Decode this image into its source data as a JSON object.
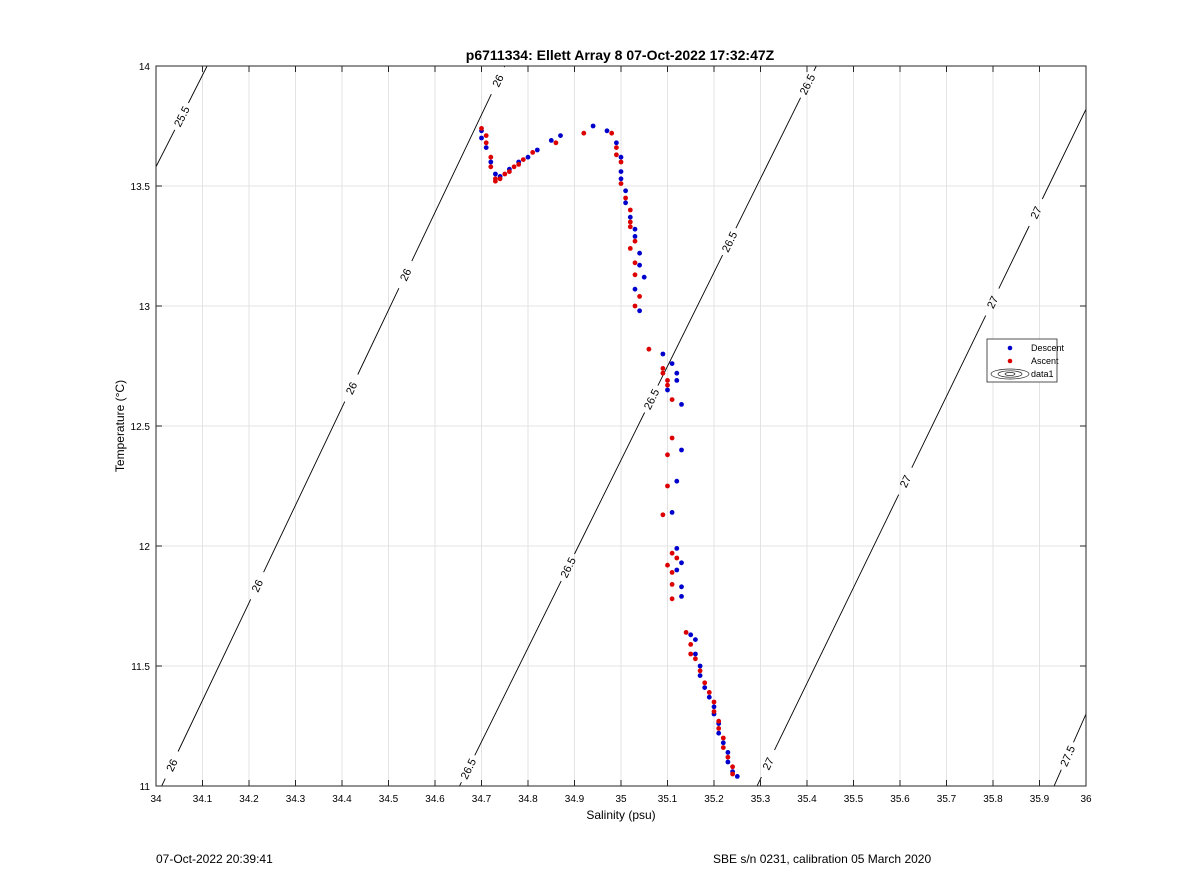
{
  "chart_data": {
    "type": "scatter",
    "title": "p6711334: Ellett Array 8 07-Oct-2022 17:32:47Z",
    "xlabel": "Salinity (psu)",
    "ylabel": "Temperature (°C)",
    "xlim": [
      34,
      36
    ],
    "ylim": [
      11,
      14
    ],
    "xticks": [
      34,
      34.1,
      34.2,
      34.3,
      34.4,
      34.5,
      34.6,
      34.7,
      34.8,
      34.9,
      35,
      35.1,
      35.2,
      35.3,
      35.4,
      35.5,
      35.6,
      35.7,
      35.8,
      35.9,
      36
    ],
    "xtick_labels": [
      "34",
      "34.1",
      "34.2",
      "34.3",
      "34.4",
      "34.5",
      "34.6",
      "34.7",
      "34.8",
      "34.9",
      "35",
      "35.1",
      "35.2",
      "35.3",
      "35.4",
      "35.5",
      "35.6",
      "35.7",
      "35.8",
      "35.9",
      "36"
    ],
    "yticks": [
      11,
      11.5,
      12,
      12.5,
      13,
      13.5,
      14
    ],
    "ytick_labels": [
      "11",
      "11.5",
      "12",
      "12.5",
      "13",
      "13.5",
      "14"
    ],
    "grid": true,
    "legend_position": "right",
    "series": [
      {
        "name": "Descent",
        "color": "#0000cc",
        "marker": "dot",
        "points": [
          [
            34.7,
            13.73
          ],
          [
            34.7,
            13.7
          ],
          [
            34.71,
            13.66
          ],
          [
            34.72,
            13.6
          ],
          [
            34.73,
            13.55
          ],
          [
            34.74,
            13.54
          ],
          [
            34.76,
            13.57
          ],
          [
            34.78,
            13.6
          ],
          [
            34.8,
            13.62
          ],
          [
            34.82,
            13.65
          ],
          [
            34.85,
            13.69
          ],
          [
            34.87,
            13.71
          ],
          [
            34.94,
            13.75
          ],
          [
            34.97,
            13.73
          ],
          [
            34.99,
            13.68
          ],
          [
            35.0,
            13.62
          ],
          [
            35.0,
            13.56
          ],
          [
            35.0,
            13.53
          ],
          [
            35.01,
            13.48
          ],
          [
            35.01,
            13.43
          ],
          [
            35.02,
            13.37
          ],
          [
            35.03,
            13.32
          ],
          [
            35.03,
            13.29
          ],
          [
            35.04,
            13.22
          ],
          [
            35.04,
            13.17
          ],
          [
            35.05,
            13.12
          ],
          [
            35.03,
            13.07
          ],
          [
            35.04,
            12.98
          ],
          [
            35.09,
            12.8
          ],
          [
            35.11,
            12.76
          ],
          [
            35.12,
            12.72
          ],
          [
            35.12,
            12.69
          ],
          [
            35.1,
            12.65
          ],
          [
            35.13,
            12.59
          ],
          [
            35.13,
            12.4
          ],
          [
            35.12,
            12.27
          ],
          [
            35.11,
            12.14
          ],
          [
            35.12,
            11.99
          ],
          [
            35.13,
            11.93
          ],
          [
            35.12,
            11.9
          ],
          [
            35.13,
            11.83
          ],
          [
            35.13,
            11.79
          ],
          [
            35.15,
            11.63
          ],
          [
            35.16,
            11.61
          ],
          [
            35.16,
            11.55
          ],
          [
            35.17,
            11.5
          ],
          [
            35.17,
            11.46
          ],
          [
            35.18,
            11.41
          ],
          [
            35.19,
            11.37
          ],
          [
            35.2,
            11.33
          ],
          [
            35.2,
            11.3
          ],
          [
            35.21,
            11.26
          ],
          [
            35.21,
            11.22
          ],
          [
            35.22,
            11.18
          ],
          [
            35.23,
            11.14
          ],
          [
            35.23,
            11.1
          ],
          [
            35.24,
            11.06
          ],
          [
            35.25,
            11.04
          ]
        ]
      },
      {
        "name": "Ascent",
        "color": "#dd0000",
        "marker": "dot",
        "points": [
          [
            34.7,
            13.74
          ],
          [
            34.71,
            13.71
          ],
          [
            34.71,
            13.68
          ],
          [
            34.72,
            13.62
          ],
          [
            34.72,
            13.58
          ],
          [
            34.73,
            13.53
          ],
          [
            34.73,
            13.52
          ],
          [
            34.74,
            13.53
          ],
          [
            34.75,
            13.55
          ],
          [
            34.76,
            13.56
          ],
          [
            34.77,
            13.58
          ],
          [
            34.78,
            13.59
          ],
          [
            34.79,
            13.61
          ],
          [
            34.81,
            13.64
          ],
          [
            34.86,
            13.68
          ],
          [
            34.92,
            13.72
          ],
          [
            34.98,
            13.72
          ],
          [
            34.99,
            13.66
          ],
          [
            34.99,
            13.63
          ],
          [
            35.0,
            13.6
          ],
          [
            35.0,
            13.51
          ],
          [
            35.01,
            13.45
          ],
          [
            35.02,
            13.4
          ],
          [
            35.02,
            13.35
          ],
          [
            35.02,
            13.33
          ],
          [
            35.03,
            13.27
          ],
          [
            35.02,
            13.24
          ],
          [
            35.03,
            13.18
          ],
          [
            35.03,
            13.13
          ],
          [
            35.04,
            13.04
          ],
          [
            35.03,
            13.0
          ],
          [
            35.06,
            12.82
          ],
          [
            35.09,
            12.74
          ],
          [
            35.09,
            12.72
          ],
          [
            35.1,
            12.69
          ],
          [
            35.1,
            12.67
          ],
          [
            35.11,
            12.61
          ],
          [
            35.11,
            12.45
          ],
          [
            35.1,
            12.38
          ],
          [
            35.1,
            12.25
          ],
          [
            35.09,
            12.13
          ],
          [
            35.11,
            11.97
          ],
          [
            35.12,
            11.95
          ],
          [
            35.1,
            11.92
          ],
          [
            35.11,
            11.89
          ],
          [
            35.11,
            11.84
          ],
          [
            35.11,
            11.78
          ],
          [
            35.14,
            11.64
          ],
          [
            35.15,
            11.59
          ],
          [
            35.15,
            11.55
          ],
          [
            35.16,
            11.53
          ],
          [
            35.17,
            11.48
          ],
          [
            35.18,
            11.43
          ],
          [
            35.19,
            11.39
          ],
          [
            35.2,
            11.35
          ],
          [
            35.2,
            11.31
          ],
          [
            35.21,
            11.27
          ],
          [
            35.21,
            11.24
          ],
          [
            35.22,
            11.2
          ],
          [
            35.22,
            11.16
          ],
          [
            35.23,
            11.12
          ],
          [
            35.24,
            11.08
          ],
          [
            35.24,
            11.05
          ]
        ]
      }
    ],
    "contours": [
      {
        "label": "25.5",
        "from": [
          34.0,
          13.58
        ],
        "to": [
          34.11,
          14.0
        ],
        "label_positions": [
          0.5
        ]
      },
      {
        "label": "26",
        "from": [
          34.0,
          10.95
        ],
        "to": [
          34.75,
          14.0
        ],
        "label_positions": [
          0.045,
          0.29,
          0.56,
          0.715,
          0.98
        ]
      },
      {
        "label": "26.5",
        "from": [
          34.64,
          10.95
        ],
        "to": [
          35.42,
          14.0
        ],
        "label_positions": [
          0.04,
          0.315,
          0.545,
          0.76,
          0.975
        ]
      },
      {
        "label": "27",
        "from": [
          35.28,
          10.95
        ],
        "to": [
          36.0,
          13.82
        ],
        "label_positions": [
          0.05,
          0.46,
          0.72,
          0.85
        ]
      },
      {
        "label": "27.5",
        "from": [
          35.92,
          10.95
        ],
        "to": [
          36.0,
          11.3
        ],
        "label_positions": [
          0.5
        ]
      }
    ],
    "legend": {
      "entries": [
        "Descent",
        "Ascent",
        "data1"
      ]
    }
  },
  "footer": {
    "left": "07-Oct-2022 20:39:41",
    "right": "SBE s/n 0231, calibration 05 March 2020"
  }
}
